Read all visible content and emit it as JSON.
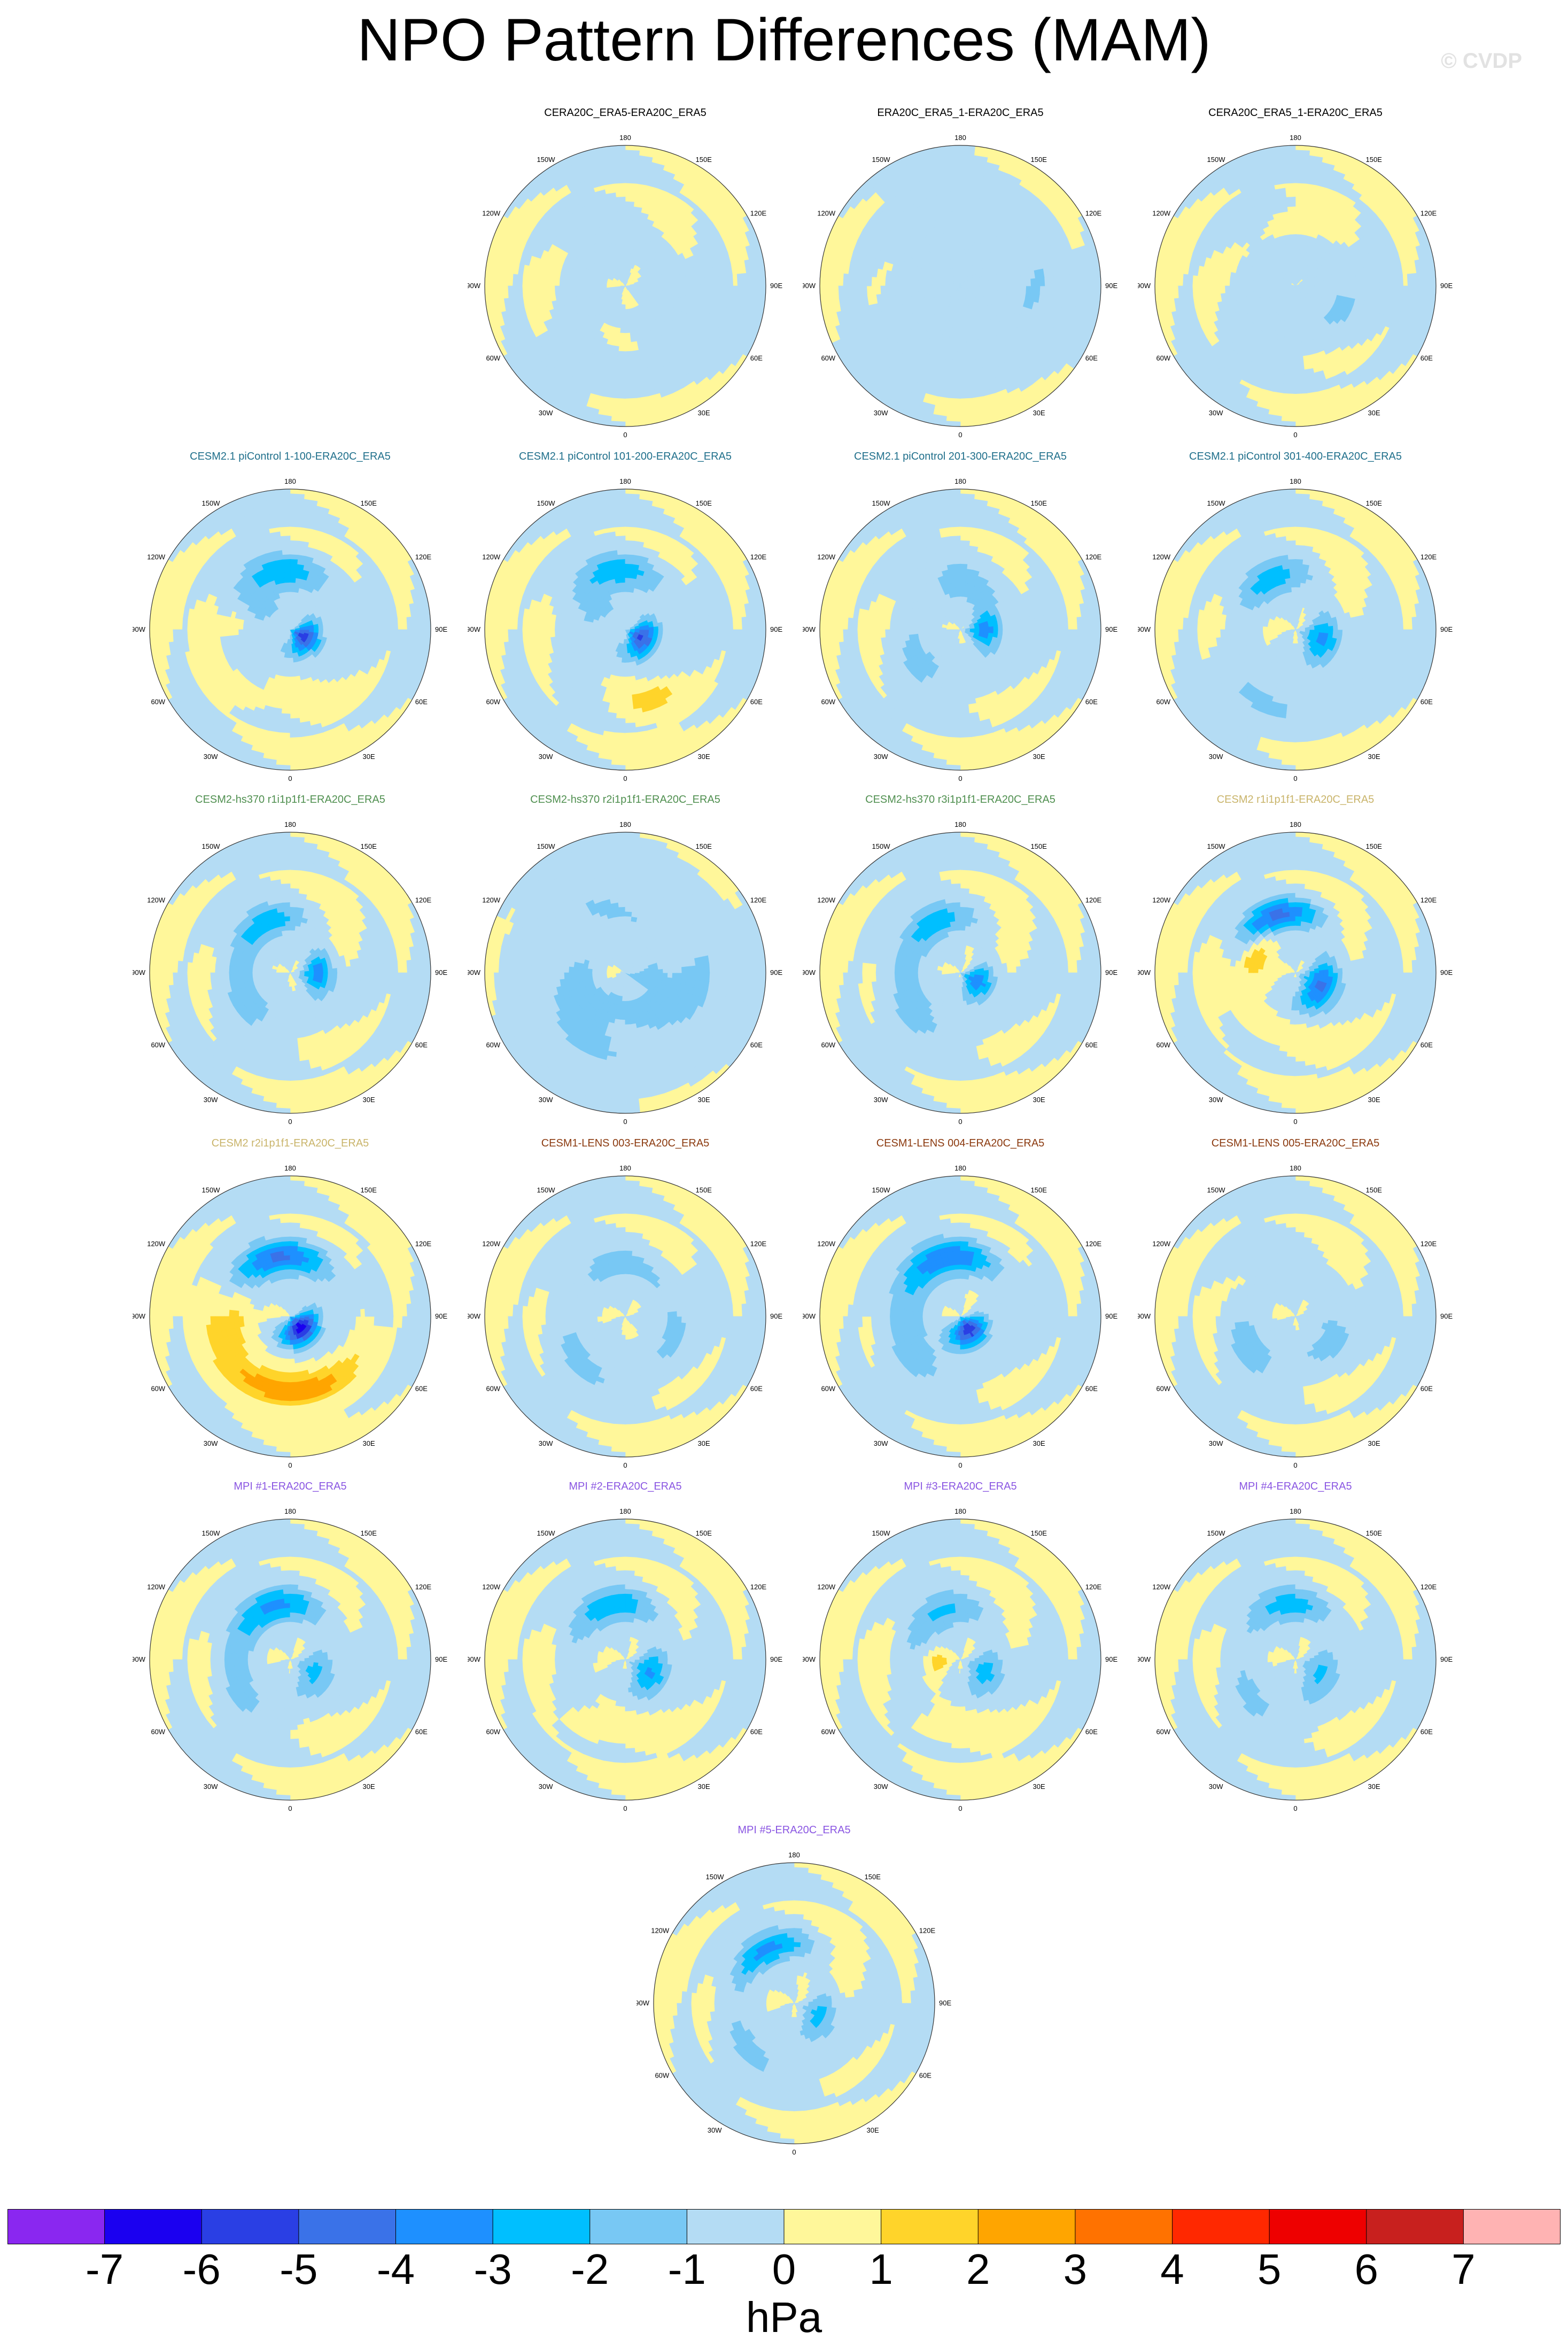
{
  "title": "NPO Pattern Differences (MAM)",
  "watermark": "© CVDP",
  "units": "hPa",
  "colorbar": {
    "labels": [
      "-7",
      "-6",
      "-5",
      "-4",
      "-3",
      "-2",
      "-1",
      "0",
      "1",
      "2",
      "3",
      "4",
      "5",
      "6",
      "7"
    ],
    "colors": [
      "#8a27f0",
      "#1b00f0",
      "#2a3fe4",
      "#3a72e8",
      "#1e90ff",
      "#00bfff",
      "#78c8f4",
      "#b4dcf4",
      "#fff79a",
      "#ffd42a",
      "#ffa500",
      "#ff7200",
      "#ff2800",
      "#ee0000",
      "#c8201e",
      "#ffb3b3"
    ]
  },
  "map_axis_labels": {
    "top": "180",
    "upper_left": "150W",
    "upper_right": "150E",
    "left_upper": "120W",
    "right_upper": "120E",
    "left": "90W",
    "right": "90E",
    "left_lower": "60W",
    "right_lower": "60E",
    "lower_left": "30W",
    "lower_right": "30E",
    "bottom": "0"
  },
  "panels": [
    {
      "title": "CERA20C_ERA5-ERA20C_ERA5",
      "color": "#000000",
      "anomalies": [
        {
          "lon": 90,
          "lat": 62,
          "v": -0.6,
          "s": [
            50,
            12
          ]
        },
        {
          "lon": -120,
          "lat": 62,
          "v": -0.6,
          "s": [
            40,
            12
          ]
        },
        {
          "lon": 10,
          "lat": 35,
          "v": -0.6,
          "s": [
            35,
            10
          ]
        }
      ]
    },
    {
      "title": "ERA20C_ERA5_1-ERA20C_ERA5",
      "color": "#000000",
      "anomalies": [
        {
          "lon": 0,
          "lat": 70,
          "v": -0.7,
          "s": [
            180,
            25
          ]
        },
        {
          "lon": 120,
          "lat": 40,
          "v": -0.6,
          "s": [
            40,
            12
          ]
        }
      ]
    },
    {
      "title": "CERA20C_ERA5_1-ERA20C_ERA5",
      "color": "#000000",
      "anomalies": [
        {
          "lon": 175,
          "lat": 50,
          "v": 1.4,
          "s": [
            22,
            6
          ]
        },
        {
          "lon": -20,
          "lat": 70,
          "v": -0.7,
          "s": [
            120,
            18
          ]
        },
        {
          "lon": 100,
          "lat": 60,
          "v": -0.6,
          "s": [
            50,
            14
          ]
        }
      ]
    },
    {
      "title": "CESM2.1 piControl 1-100-ERA20C_ERA5",
      "color": "#1f6f8b",
      "anomalies": [
        {
          "lon": 60,
          "lat": 80,
          "v": -5.2,
          "s": [
            40,
            7
          ]
        },
        {
          "lon": -170,
          "lat": 52,
          "v": -2.3,
          "s": [
            40,
            8
          ]
        },
        {
          "lon": -110,
          "lat": 72,
          "v": -1.0,
          "s": [
            60,
            12
          ]
        },
        {
          "lon": -45,
          "lat": 40,
          "v": 1.3,
          "s": [
            15,
            5
          ]
        },
        {
          "lon": -95,
          "lat": 55,
          "v": 1.2,
          "s": [
            10,
            5
          ]
        }
      ]
    },
    {
      "title": "CESM2.1 piControl 101-200-ERA20C_ERA5",
      "color": "#1f6f8b",
      "anomalies": [
        {
          "lon": 60,
          "lat": 78,
          "v": -5.0,
          "s": [
            40,
            7
          ]
        },
        {
          "lon": -170,
          "lat": 52,
          "v": -2.2,
          "s": [
            40,
            8
          ]
        },
        {
          "lon": -110,
          "lat": 72,
          "v": -1.0,
          "s": [
            60,
            12
          ]
        },
        {
          "lon": 20,
          "lat": 42,
          "v": 1.4,
          "s": [
            15,
            5
          ]
        }
      ]
    },
    {
      "title": "CESM2.1 piControl 201-300-ERA20C_ERA5",
      "color": "#1f6f8b",
      "anomalies": [
        {
          "lon": 90,
          "lat": 75,
          "v": -3.2,
          "s": [
            30,
            7
          ]
        },
        {
          "lon": -30,
          "lat": 60,
          "v": -1.1,
          "s": [
            60,
            12
          ]
        },
        {
          "lon": 170,
          "lat": 62,
          "v": -1.2,
          "s": [
            50,
            12
          ]
        }
      ]
    },
    {
      "title": "CESM2.1 piControl 301-400-ERA20C_ERA5",
      "color": "#1f6f8b",
      "anomalies": [
        {
          "lon": -150,
          "lat": 55,
          "v": -2.6,
          "s": [
            30,
            8
          ]
        },
        {
          "lon": 70,
          "lat": 72,
          "v": -3.2,
          "s": [
            35,
            8
          ]
        },
        {
          "lon": -10,
          "lat": 40,
          "v": -1.0,
          "s": [
            40,
            10
          ]
        }
      ]
    },
    {
      "title": "CESM2-hs370 r1i1p1f1-ERA20C_ERA5",
      "color": "#4f8f4f",
      "anomalies": [
        {
          "lon": 90,
          "lat": 72,
          "v": -3.4,
          "s": [
            30,
            7
          ]
        },
        {
          "lon": -150,
          "lat": 55,
          "v": -2.4,
          "s": [
            30,
            7
          ]
        },
        {
          "lon": -60,
          "lat": 60,
          "v": -1.2,
          "s": [
            60,
            12
          ]
        }
      ]
    },
    {
      "title": "CESM2-hs370 r2i1p1f1-ERA20C_ERA5",
      "color": "#4f8f4f",
      "anomalies": [
        {
          "lon": 0,
          "lat": 60,
          "v": -1.2,
          "s": [
            180,
            30
          ]
        },
        {
          "lon": -70,
          "lat": 82,
          "v": 1.0,
          "s": [
            50,
            5
          ]
        }
      ]
    },
    {
      "title": "CESM2-hs370 r3i1p1f1-ERA20C_ERA5",
      "color": "#4f8f4f",
      "anomalies": [
        {
          "lon": 60,
          "lat": 78,
          "v": -3.6,
          "s": [
            35,
            7
          ]
        },
        {
          "lon": -150,
          "lat": 55,
          "v": -2.3,
          "s": [
            30,
            7
          ]
        },
        {
          "lon": -60,
          "lat": 55,
          "v": -1.2,
          "s": [
            60,
            12
          ]
        }
      ]
    },
    {
      "title": "CESM2 r1i1p1f1-ERA20C_ERA5",
      "color": "#c9b46a",
      "anomalies": [
        {
          "lon": -160,
          "lat": 52,
          "v": -4.1,
          "s": [
            30,
            7
          ]
        },
        {
          "lon": 60,
          "lat": 72,
          "v": -4.2,
          "s": [
            40,
            8
          ]
        },
        {
          "lon": -110,
          "lat": 62,
          "v": 1.8,
          "s": [
            25,
            6
          ]
        },
        {
          "lon": -40,
          "lat": 50,
          "v": 1.2,
          "s": [
            20,
            5
          ]
        }
      ]
    },
    {
      "title": "CESM2 r2i1p1f1-ERA20C_ERA5",
      "color": "#c9b46a",
      "anomalies": [
        {
          "lon": 40,
          "lat": 80,
          "v": -6.6,
          "s": [
            45,
            7
          ]
        },
        {
          "lon": -165,
          "lat": 52,
          "v": -4.0,
          "s": [
            40,
            8
          ]
        },
        {
          "lon": -10,
          "lat": 42,
          "v": 2.8,
          "s": [
            50,
            7
          ]
        },
        {
          "lon": -90,
          "lat": 55,
          "v": 1.8,
          "s": [
            30,
            6
          ]
        }
      ]
    },
    {
      "title": "CESM1-LENS 003-ERA20C_ERA5",
      "color": "#8b3a0f",
      "anomalies": [
        {
          "lon": -150,
          "lat": 58,
          "v": -1.1,
          "s": [
            40,
            10
          ]
        },
        {
          "lon": 100,
          "lat": 60,
          "v": -1.1,
          "s": [
            50,
            10
          ]
        },
        {
          "lon": -30,
          "lat": 50,
          "v": -1.0,
          "s": [
            50,
            10
          ]
        }
      ]
    },
    {
      "title": "CESM1-LENS 004-ERA20C_ERA5",
      "color": "#8b3a0f",
      "anomalies": [
        {
          "lon": 30,
          "lat": 80,
          "v": -5.8,
          "s": [
            40,
            7
          ]
        },
        {
          "lon": -165,
          "lat": 52,
          "v": -3.5,
          "s": [
            40,
            8
          ]
        },
        {
          "lon": -60,
          "lat": 55,
          "v": -1.2,
          "s": [
            60,
            12
          ]
        }
      ]
    },
    {
      "title": "CESM1-LENS 005-ERA20C_ERA5",
      "color": "#8b3a0f",
      "anomalies": [
        {
          "lon": 60,
          "lat": 65,
          "v": -1.1,
          "s": [
            60,
            12
          ]
        },
        {
          "lon": -60,
          "lat": 55,
          "v": -1.1,
          "s": [
            40,
            10
          ]
        }
      ]
    },
    {
      "title": "MPI #1-ERA20C_ERA5",
      "color": "#8a56e2",
      "anomalies": [
        {
          "lon": -160,
          "lat": 55,
          "v": -3.0,
          "s": [
            40,
            8
          ]
        },
        {
          "lon": 60,
          "lat": 72,
          "v": -2.3,
          "s": [
            35,
            8
          ]
        },
        {
          "lon": -60,
          "lat": 55,
          "v": -1.0,
          "s": [
            50,
            10
          ]
        }
      ]
    },
    {
      "title": "MPI #2-ERA20C_ERA5",
      "color": "#8a56e2",
      "anomalies": [
        {
          "lon": -160,
          "lat": 55,
          "v": -2.6,
          "s": [
            40,
            8
          ]
        },
        {
          "lon": 60,
          "lat": 72,
          "v": -3.1,
          "s": [
            35,
            8
          ]
        },
        {
          "lon": -30,
          "lat": 42,
          "v": 1.2,
          "s": [
            12,
            5
          ]
        }
      ]
    },
    {
      "title": "MPI #3-ERA20C_ERA5",
      "color": "#8a56e2",
      "anomalies": [
        {
          "lon": -150,
          "lat": 58,
          "v": -2.2,
          "s": [
            40,
            8
          ]
        },
        {
          "lon": -80,
          "lat": 75,
          "v": 1.4,
          "s": [
            20,
            6
          ]
        },
        {
          "lon": 60,
          "lat": 72,
          "v": -2.4,
          "s": [
            35,
            8
          ]
        },
        {
          "lon": -20,
          "lat": 42,
          "v": 1.2,
          "s": [
            12,
            4
          ]
        }
      ]
    },
    {
      "title": "MPI #4-ERA20C_ERA5",
      "color": "#8a56e2",
      "anomalies": [
        {
          "lon": -170,
          "lat": 55,
          "v": -2.2,
          "s": [
            40,
            8
          ]
        },
        {
          "lon": 60,
          "lat": 72,
          "v": -2.2,
          "s": [
            35,
            8
          ]
        },
        {
          "lon": -30,
          "lat": 55,
          "v": -1.0,
          "s": [
            50,
            10
          ]
        }
      ]
    },
    {
      "title": "MPI #5-ERA20C_ERA5",
      "color": "#8a56e2",
      "anomalies": [
        {
          "lon": -150,
          "lat": 52,
          "v": -3.2,
          "s": [
            30,
            7
          ]
        },
        {
          "lon": 60,
          "lat": 72,
          "v": -2.4,
          "s": [
            35,
            7
          ]
        },
        {
          "lon": -30,
          "lat": 50,
          "v": -1.0,
          "s": [
            50,
            10
          ]
        }
      ]
    }
  ]
}
